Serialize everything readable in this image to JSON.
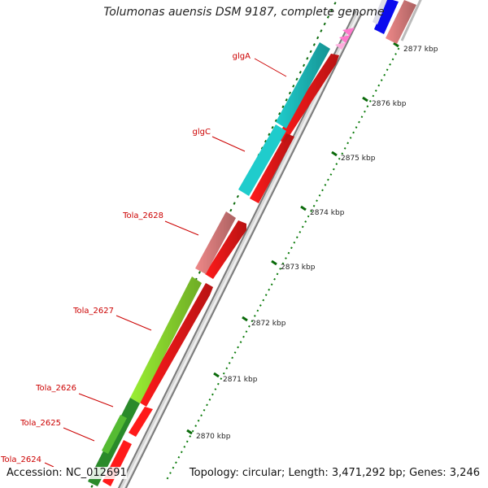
{
  "title": "Tolumonas auensis DSM 9187, complete genome",
  "footer": {
    "accession": "Accession: NC_012691",
    "summary": "Topology: circular; Length: 3,471,292 bp; Genes: 3,246"
  },
  "colors": {
    "cds_forward": "#ff0000",
    "glg_genes": "#00cccc",
    "tola_2628": "#ee8888",
    "tola_2627": "#99ee33",
    "tola_2626": "#339933",
    "trna_marks": "#ff88cc",
    "top_right_gene": "#0000ee",
    "label": "#cc0000",
    "gc_skew_ticks": "#006600"
  },
  "genes": [
    {
      "label": "glgA",
      "color": "#00cccc"
    },
    {
      "label": "glgC",
      "color": "#00cccc"
    },
    {
      "label": "Tola_2628",
      "color": "#ee8888"
    },
    {
      "label": "Tola_2627",
      "color": "#99ee33"
    },
    {
      "label": "Tola_2626",
      "color": "#339933"
    },
    {
      "label": "Tola_2625",
      "color": "#339933"
    },
    {
      "label": "Tola_2624",
      "color": "#339933"
    }
  ],
  "ruler": [
    {
      "label": "2877 kbp"
    },
    {
      "label": "2876 kbp"
    },
    {
      "label": "2875 kbp"
    },
    {
      "label": "2874 kbp"
    },
    {
      "label": "2873 kbp"
    },
    {
      "label": "2872 kbp"
    },
    {
      "label": "2871 kbp"
    },
    {
      "label": "2870 kbp"
    }
  ]
}
